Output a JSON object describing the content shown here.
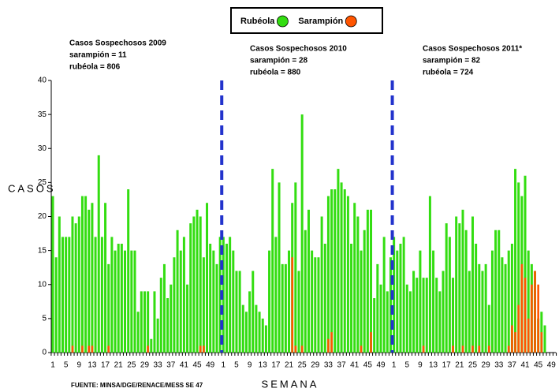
{
  "chart_data": {
    "type": "bar",
    "y_label": "CASOS",
    "x_label": "SEMANA",
    "source": "FUENTE: MINSA/DGE/RENACE/MESS SE 47",
    "annotations": [
      [
        "Casos Sospechosos 2009",
        "sarampión = 11",
        "rubéola = 806"
      ],
      [
        "Casos Sospechosos 2010",
        "sarampión = 28",
        "rubéola = 880"
      ],
      [
        "Casos Sospechosos 2011*",
        "sarampión = 82",
        "rubéola = 724"
      ]
    ],
    "legend": "top",
    "categories": [
      "1",
      null,
      null,
      null,
      "5",
      null,
      null,
      null,
      "9",
      null,
      null,
      null,
      "13",
      null,
      null,
      null,
      "17",
      null,
      null,
      null,
      "21",
      null,
      null,
      null,
      "25",
      null,
      null,
      null,
      "29",
      null,
      null,
      null,
      "33",
      null,
      null,
      null,
      "37",
      null,
      null,
      null,
      "41",
      null,
      null,
      null,
      "45",
      null,
      null,
      null,
      "49",
      null,
      null,
      null,
      "1",
      null,
      null,
      null,
      "5",
      null,
      null,
      null,
      "9",
      null,
      null,
      null,
      "13",
      null,
      null,
      null,
      "17",
      null,
      null,
      null,
      "21",
      null,
      null,
      null,
      "25",
      null,
      null,
      null,
      "29",
      null,
      null,
      null,
      "33",
      null,
      null,
      null,
      "37",
      null,
      null,
      null,
      "41",
      null,
      null,
      null,
      "45",
      null,
      null,
      null,
      "49",
      null,
      null,
      null,
      "1",
      null,
      null,
      null,
      "5",
      null,
      null,
      null,
      "9",
      null,
      null,
      null,
      "13",
      null,
      null,
      null,
      "17",
      null,
      null,
      null,
      "21",
      null,
      null,
      null,
      "25",
      null,
      null,
      null,
      "29",
      null,
      null,
      null,
      "33",
      null,
      null,
      null,
      "37",
      null,
      null,
      null,
      "41",
      null,
      null,
      null,
      "45",
      null,
      null,
      null,
      "49",
      null,
      null,
      null
    ],
    "series": [
      {
        "name": "Rubéola",
        "color": "#33dd11",
        "values": [
          23,
          14,
          20,
          17,
          17,
          17,
          20,
          19,
          20,
          23,
          23,
          21,
          22,
          17,
          29,
          17,
          22,
          13,
          17,
          15,
          16,
          16,
          15,
          24,
          15,
          15,
          6,
          9,
          9,
          9,
          2,
          9,
          5,
          11,
          13,
          8,
          10,
          14,
          18,
          15,
          17,
          10,
          19,
          20,
          21,
          20,
          14,
          22,
          16,
          15,
          13,
          17,
          17,
          16,
          17,
          15,
          12,
          12,
          7,
          6,
          9,
          12,
          7,
          6,
          5,
          4,
          15,
          27,
          17,
          25,
          13,
          13,
          15,
          22,
          25,
          12,
          35,
          18,
          21,
          15,
          14,
          14,
          20,
          16,
          23,
          24,
          24,
          27,
          25,
          24,
          23,
          16,
          22,
          20,
          15,
          18,
          21,
          21,
          8,
          13,
          10,
          17,
          9,
          14,
          17,
          15,
          16,
          17,
          10,
          9,
          12,
          11,
          15,
          11,
          11,
          23,
          15,
          11,
          9,
          12,
          19,
          17,
          11,
          20,
          19,
          21,
          18,
          12,
          20,
          16,
          13,
          12,
          13,
          7,
          15,
          18,
          18,
          14,
          13,
          15,
          16,
          27,
          25,
          23,
          26,
          15,
          13,
          12,
          5,
          6,
          4,
          null,
          null,
          null,
          null,
          null
        ]
      },
      {
        "name": "Sarampión",
        "color": "#ff5500",
        "values": [
          0,
          0,
          0,
          0,
          0,
          0,
          1,
          0,
          0,
          1,
          0,
          1,
          1,
          0,
          0,
          0,
          0,
          1,
          0,
          0,
          0,
          0,
          0,
          0,
          0,
          0,
          0,
          0,
          0,
          1,
          0,
          0,
          0,
          0,
          0,
          0,
          0,
          0,
          0,
          0,
          0,
          0,
          0,
          0,
          0,
          1,
          1,
          0,
          0,
          0,
          0,
          0,
          0,
          0,
          0,
          0,
          0,
          0,
          0,
          0,
          0,
          0,
          0,
          0,
          0,
          0,
          0,
          0,
          0,
          0,
          0,
          0,
          0,
          14,
          1,
          0,
          1,
          0,
          0,
          0,
          0,
          0,
          0,
          0,
          2,
          3,
          0,
          0,
          0,
          0,
          0,
          0,
          0,
          0,
          1,
          0,
          0,
          3,
          0,
          0,
          0,
          0,
          0,
          0,
          0,
          0,
          0,
          0,
          0,
          0,
          0,
          0,
          0,
          1,
          0,
          0,
          0,
          0,
          0,
          0,
          0,
          0,
          1,
          0,
          0,
          1,
          0,
          0,
          1,
          0,
          1,
          0,
          0,
          1,
          0,
          0,
          0,
          0,
          0,
          1,
          4,
          3,
          7,
          13,
          11,
          5,
          10,
          12,
          10,
          3,
          0,
          null,
          null,
          null,
          null,
          null
        ]
      }
    ],
    "ylim": [
      0,
      40
    ],
    "yticks": [
      0,
      5,
      10,
      15,
      20,
      25,
      30,
      35,
      40
    ],
    "grid": false
  }
}
